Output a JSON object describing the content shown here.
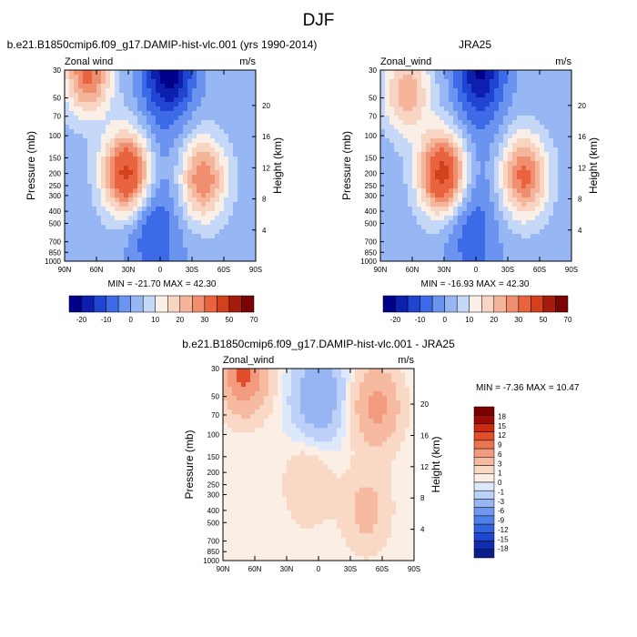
{
  "figure": {
    "title": "DJF"
  },
  "palettes": {
    "full": [
      "#00008b",
      "#0c1fae",
      "#1f45d1",
      "#3d6ae6",
      "#6a94ef",
      "#97b7f4",
      "#c6d8f8",
      "#f9efe7",
      "#f8d4c2",
      "#f5b59b",
      "#f08f6f",
      "#e9643e",
      "#d2401d",
      "#a51c0d",
      "#7a0404"
    ],
    "diff": [
      "#0b1e8a",
      "#102db3",
      "#1d47cf",
      "#3262e0",
      "#4f7fe8",
      "#7198ee",
      "#97b4f3",
      "#bdd0f7",
      "#dde8fb",
      "#fbeee5",
      "#f9d8c5",
      "#f6baa1",
      "#f39b7e",
      "#ec7552",
      "#e24d2b",
      "#c92b12",
      "#9e0b06",
      "#7a0000"
    ]
  },
  "panels": [
    {
      "title": "b.e21.B1850cmip6.f09_g17.DAMIP-hist-vlc.001 (yrs 1990-2014)",
      "left_label": "Zonal wind",
      "right_label": "m/s",
      "ylabel": "Pressure (mb)",
      "ylabel_right": "Height (km)",
      "y_ticks": [
        "30",
        "50",
        "70",
        "100",
        "150",
        "200",
        "250",
        "300",
        "400",
        "500",
        "700",
        "850",
        "1000"
      ],
      "height_ticks": [
        "4",
        "8",
        "12",
        "16",
        "20"
      ],
      "x_ticks": [
        "90N",
        "60N",
        "30N",
        "0",
        "30S",
        "60S",
        "90S"
      ],
      "minmax": "MIN = -21.70  MAX =  42.30",
      "colorbar_labels": [
        "-20",
        "-10",
        "0",
        "10",
        "20",
        "30",
        "50",
        "70"
      ]
    },
    {
      "title": "JRA25",
      "left_label": "Zonal_wind",
      "right_label": "m/s",
      "ylabel": "Pressure (mb)",
      "ylabel_right": "Height (km)",
      "y_ticks": [
        "30",
        "50",
        "70",
        "100",
        "150",
        "200",
        "250",
        "300",
        "400",
        "500",
        "700",
        "850",
        "1000"
      ],
      "height_ticks": [
        "4",
        "8",
        "12",
        "16",
        "20"
      ],
      "x_ticks": [
        "90N",
        "60N",
        "30N",
        "0",
        "30S",
        "60S",
        "90S"
      ],
      "minmax": "MIN = -16.93  MAX =  42.30",
      "colorbar_labels": [
        "-20",
        "-10",
        "0",
        "10",
        "20",
        "30",
        "50",
        "70"
      ]
    },
    {
      "title": "b.e21.B1850cmip6.f09_g17.DAMIP-hist-vlc.001 - JRA25",
      "left_label": "Zonal_wind",
      "right_label": "m/s",
      "ylabel": "Pressure (mb)",
      "ylabel_right": "Height (km)",
      "y_ticks": [
        "30",
        "50",
        "70",
        "100",
        "150",
        "200",
        "250",
        "300",
        "400",
        "500",
        "700",
        "850",
        "1000"
      ],
      "height_ticks": [
        "4",
        "8",
        "12",
        "16",
        "20"
      ],
      "x_ticks": [
        "90N",
        "60N",
        "30N",
        "0",
        "30S",
        "60S",
        "90S"
      ],
      "minmax": "MIN = -7.36  MAX =  10.47",
      "colorbar_labels": [
        "18",
        "15",
        "12",
        "9",
        "6",
        "3",
        "1",
        "0",
        "-1",
        "-3",
        "-6",
        "-9",
        "-12",
        "-15",
        "-18"
      ]
    }
  ],
  "chart_data": [
    {
      "type": "heatmap",
      "title": "b.e21.B1850cmip6.f09_g17.DAMIP-hist-vlc.001 (yrs 1990-2014)",
      "variable": "Zonal wind",
      "units": "m/s",
      "x": [
        "90N",
        "60N",
        "30N",
        "0",
        "30S",
        "60S",
        "90S"
      ],
      "y_pressure_mb": [
        30,
        50,
        70,
        100,
        150,
        200,
        250,
        300,
        400,
        500,
        700,
        850,
        1000
      ],
      "y_height_km": [
        4,
        8,
        12,
        16,
        20
      ],
      "min": -21.7,
      "max": 42.3,
      "levels": [
        -20,
        -15,
        -10,
        -5,
        0,
        5,
        10,
        15,
        20,
        25,
        30,
        40,
        50,
        60,
        70
      ],
      "features": [
        {
          "lat": 31,
          "p": 200,
          "value": 42
        },
        {
          "lat": 68,
          "p": 32,
          "value": 30
        },
        {
          "lat": -40,
          "p": 220,
          "value": 28
        },
        {
          "lat": -10,
          "p": 30,
          "value": -21
        },
        {
          "lat": 12,
          "p": 500,
          "value": -8
        }
      ]
    },
    {
      "type": "heatmap",
      "title": "JRA25",
      "variable": "Zonal_wind",
      "units": "m/s",
      "x": [
        "90N",
        "60N",
        "30N",
        "0",
        "30S",
        "60S",
        "90S"
      ],
      "y_pressure_mb": [
        30,
        50,
        70,
        100,
        150,
        200,
        250,
        300,
        400,
        500,
        700,
        850,
        1000
      ],
      "y_height_km": [
        4,
        8,
        12,
        16,
        20
      ],
      "min": -16.93,
      "max": 42.3,
      "levels": [
        -20,
        -15,
        -10,
        -5,
        0,
        5,
        10,
        15,
        20,
        25,
        30,
        40,
        50,
        60,
        70
      ],
      "features": [
        {
          "lat": 31,
          "p": 200,
          "value": 42
        },
        {
          "lat": 65,
          "p": 45,
          "value": 22
        },
        {
          "lat": -45,
          "p": 210,
          "value": 30
        },
        {
          "lat": -5,
          "p": 30,
          "value": -17
        },
        {
          "lat": 10,
          "p": 500,
          "value": -6
        }
      ]
    },
    {
      "type": "heatmap",
      "title": "b.e21.B1850cmip6.f09_g17.DAMIP-hist-vlc.001 - JRA25",
      "variable": "Zonal_wind",
      "units": "m/s",
      "x": [
        "90N",
        "60N",
        "30N",
        "0",
        "30S",
        "60S",
        "90S"
      ],
      "y_pressure_mb": [
        30,
        50,
        70,
        100,
        150,
        200,
        250,
        300,
        400,
        500,
        700,
        850,
        1000
      ],
      "y_height_km": [
        4,
        8,
        12,
        16,
        20
      ],
      "min": -7.36,
      "max": 10.47,
      "levels": [
        -18,
        -15,
        -12,
        -9,
        -6,
        -3,
        -1,
        0,
        1,
        3,
        6,
        9,
        12,
        15,
        18
      ],
      "features": [
        {
          "lat": 70,
          "p": 32,
          "value": 10
        },
        {
          "lat": -55,
          "p": 60,
          "value": 7
        },
        {
          "lat": 0,
          "p": 50,
          "value": -6
        },
        {
          "lat": 10,
          "p": 250,
          "value": 3
        },
        {
          "lat": -45,
          "p": 400,
          "value": 4
        }
      ]
    }
  ]
}
